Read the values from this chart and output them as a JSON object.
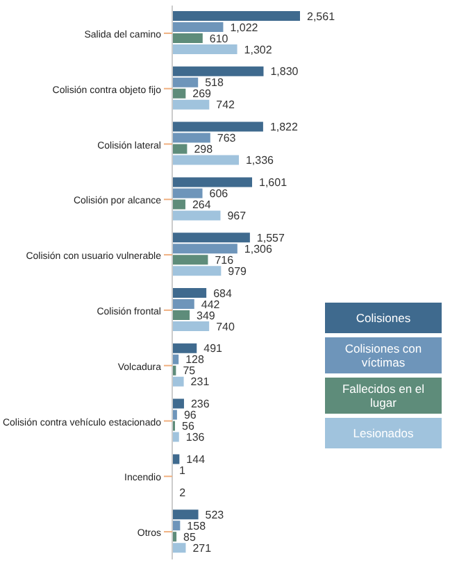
{
  "chart_data": {
    "type": "bar",
    "orientation": "horizontal",
    "categories": [
      "Salida del camino",
      "Colisión contra objeto fijo",
      "Colisión lateral",
      "Colisión por alcance",
      "Colisión con usuario vulnerable",
      "Colisión frontal",
      "Volcadura",
      "Colisión contra vehículo estacionado",
      "Incendio",
      "Otros"
    ],
    "series": [
      {
        "name": "Colisiones",
        "color": "#3f6a8e",
        "values": [
          2561,
          1830,
          1822,
          1601,
          1557,
          684,
          491,
          236,
          144,
          523
        ],
        "value_labels": [
          "2,561",
          "1,830",
          "1,822",
          "1,601",
          "1,557",
          "684",
          "491",
          "236",
          "144",
          "523"
        ]
      },
      {
        "name": "Colisiones con víctimas",
        "color": "#6e95ba",
        "values": [
          1022,
          518,
          763,
          606,
          1306,
          442,
          128,
          96,
          1,
          158
        ],
        "value_labels": [
          "1,022",
          "518",
          "763",
          "606",
          "1,306",
          "442",
          "128",
          "96",
          "1",
          "158"
        ]
      },
      {
        "name": "Fallecidos en el lugar",
        "color": "#5e8c7a",
        "values": [
          610,
          269,
          298,
          264,
          716,
          349,
          75,
          56,
          null,
          85
        ],
        "value_labels": [
          "610",
          "269",
          "298",
          "264",
          "716",
          "349",
          "75",
          "56",
          null,
          "85"
        ]
      },
      {
        "name": "Lesionados",
        "color": "#a0c3dd",
        "values": [
          1302,
          742,
          1336,
          967,
          979,
          740,
          231,
          136,
          2,
          271
        ],
        "value_labels": [
          "1,302",
          "742",
          "1,336",
          "967",
          "979",
          "740",
          "231",
          "136",
          "2",
          "271"
        ]
      }
    ],
    "tick_labels": "y",
    "legend": "right"
  }
}
